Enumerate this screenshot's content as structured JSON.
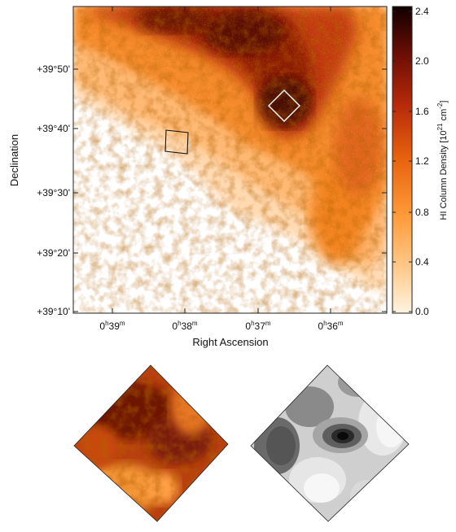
{
  "main_map": {
    "xlabel": "Right Ascension",
    "ylabel": "Declination",
    "x_ticks": [
      {
        "h": "0",
        "m": "39"
      },
      {
        "h": "0",
        "m": "38"
      },
      {
        "h": "0",
        "m": "37"
      },
      {
        "h": "0",
        "m": "36"
      }
    ],
    "y_ticks": [
      "+39°50'",
      "+39°40'",
      "+39°30'",
      "+39°20'",
      "+39°10'"
    ],
    "colormap": "inverted heat (white to orange to dark red to black)"
  },
  "colorbar": {
    "label_prefix": "HI Column Density [10",
    "label_exp1": "21",
    "label_mid": " cm",
    "label_exp2": "-2",
    "label_suffix": "]",
    "ticks": [
      "2.4",
      "2.0",
      "1.6",
      "1.2",
      "0.8",
      "0.4",
      "0.0"
    ],
    "range": [
      0.0,
      2.4
    ]
  },
  "insets": {
    "left": "color zoom of the white diamond region",
    "right": "grayscale smoothed contour map of same region"
  }
}
